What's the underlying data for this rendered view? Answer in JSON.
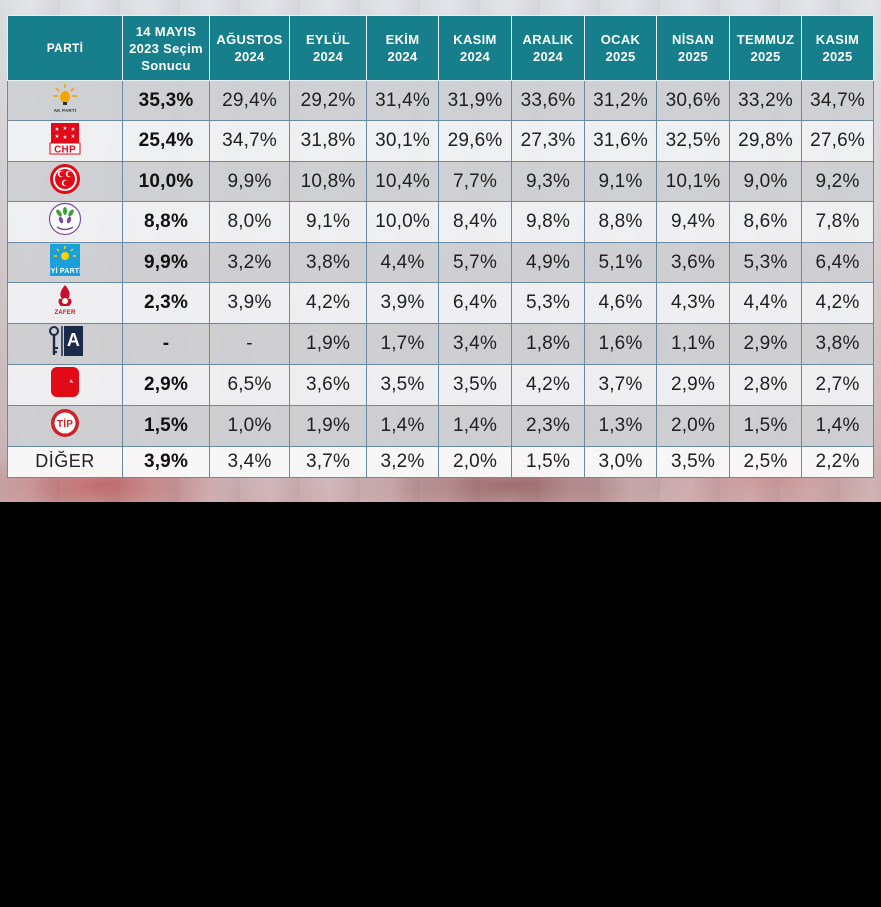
{
  "table": {
    "header": {
      "party": "PARTİ",
      "election": [
        "14 MAYIS",
        "2023 Seçim",
        "Sonucu"
      ],
      "months": [
        {
          "month": "AĞUSTOS",
          "year": "2024"
        },
        {
          "month": "EYLÜL",
          "year": "2024"
        },
        {
          "month": "EKİM",
          "year": "2024"
        },
        {
          "month": "KASIM",
          "year": "2024"
        },
        {
          "month": "ARALIK",
          "year": "2024"
        },
        {
          "month": "OCAK",
          "year": "2025"
        },
        {
          "month": "NİSAN",
          "year": "2025"
        },
        {
          "month": "TEMMUZ",
          "year": "2025"
        },
        {
          "month": "KASIM",
          "year": "2025"
        }
      ]
    },
    "rows": [
      {
        "party": "AK PARTİ",
        "logo_text": "AK PARTİ",
        "color": "#f5a300",
        "election": "35,3%",
        "values": [
          "29,4%",
          "29,2%",
          "31,4%",
          "31,9%",
          "33,6%",
          "31,2%",
          "30,6%",
          "33,2%",
          "34,7%"
        ]
      },
      {
        "party": "CHP",
        "logo_text": "CHP",
        "color": "#e30a17",
        "election": "25,4%",
        "values": [
          "34,7%",
          "31,8%",
          "30,1%",
          "29,6%",
          "27,3%",
          "31,6%",
          "32,5%",
          "29,8%",
          "27,6%"
        ]
      },
      {
        "party": "MHP",
        "logo_text": "",
        "color": "#e30a17",
        "election": "10,0%",
        "values": [
          "9,9%",
          "10,8%",
          "10,4%",
          "7,7%",
          "9,3%",
          "9,1%",
          "10,1%",
          "9,0%",
          "9,2%"
        ]
      },
      {
        "party": "DEM PARTİ",
        "logo_text": "",
        "color": "#3aa03a",
        "election": "8,8%",
        "values": [
          "8,0%",
          "9,1%",
          "10,0%",
          "8,4%",
          "9,8%",
          "8,8%",
          "9,4%",
          "8,6%",
          "7,8%"
        ]
      },
      {
        "party": "İYİ PARTİ",
        "logo_text": "İYİ PARTİ",
        "color": "#1aa0d8",
        "election": "9,9%",
        "values": [
          "3,2%",
          "3,8%",
          "4,4%",
          "5,7%",
          "4,9%",
          "5,1%",
          "3,6%",
          "5,3%",
          "6,4%"
        ]
      },
      {
        "party": "ZAFER PARTİSİ",
        "logo_text": "ZAFER",
        "color": "#c8102e",
        "election": "2,3%",
        "values": [
          "3,9%",
          "4,2%",
          "3,9%",
          "6,4%",
          "5,3%",
          "4,6%",
          "4,3%",
          "4,4%",
          "4,2%"
        ]
      },
      {
        "party": "ANAHTAR PARTİ",
        "logo_text": "A",
        "color": "#1a2a4a",
        "election": "-",
        "values": [
          "-",
          "1,9%",
          "1,7%",
          "3,4%",
          "1,8%",
          "1,6%",
          "1,1%",
          "2,9%",
          "3,8%"
        ]
      },
      {
        "party": "YENİDEN REFAH",
        "logo_text": "",
        "color": "#e30a17",
        "election": "2,9%",
        "values": [
          "6,5%",
          "3,6%",
          "3,5%",
          "3,5%",
          "4,2%",
          "3,7%",
          "2,9%",
          "2,8%",
          "2,7%"
        ]
      },
      {
        "party": "TİP",
        "logo_text": "TİP",
        "color": "#d0202a",
        "election": "1,5%",
        "values": [
          "1,0%",
          "1,9%",
          "1,4%",
          "1,4%",
          "2,3%",
          "1,3%",
          "2,0%",
          "1,5%",
          "1,4%"
        ]
      },
      {
        "party": "DİĞER",
        "logo_text": "",
        "color": "#222222",
        "election": "3,9%",
        "values": [
          "3,4%",
          "3,7%",
          "3,2%",
          "2,0%",
          "1,5%",
          "3,0%",
          "3,5%",
          "2,5%",
          "2,2%"
        ]
      }
    ]
  },
  "chart_data": {
    "type": "table",
    "title": "",
    "columns": [
      "PARTİ",
      "14 MAYIS 2023 Seçim Sonucu",
      "AĞUSTOS 2024",
      "EYLÜL 2024",
      "EKİM 2024",
      "KASIM 2024",
      "ARALIK 2024",
      "OCAK 2025",
      "NİSAN 2025",
      "TEMMUZ 2025",
      "KASIM 2025"
    ],
    "parties": [
      "AK PARTİ",
      "CHP",
      "MHP",
      "DEM PARTİ",
      "İYİ PARTİ",
      "ZAFER PARTİSİ",
      "ANAHTAR PARTİ",
      "YENİDEN REFAH",
      "TİP",
      "DİĞER"
    ],
    "units": "percent"
  },
  "colors": {
    "header_bg": "#167f8b",
    "header_text": "#ffffff",
    "row_odd": "#cecfd2",
    "row_even": "#f0f1f3"
  }
}
